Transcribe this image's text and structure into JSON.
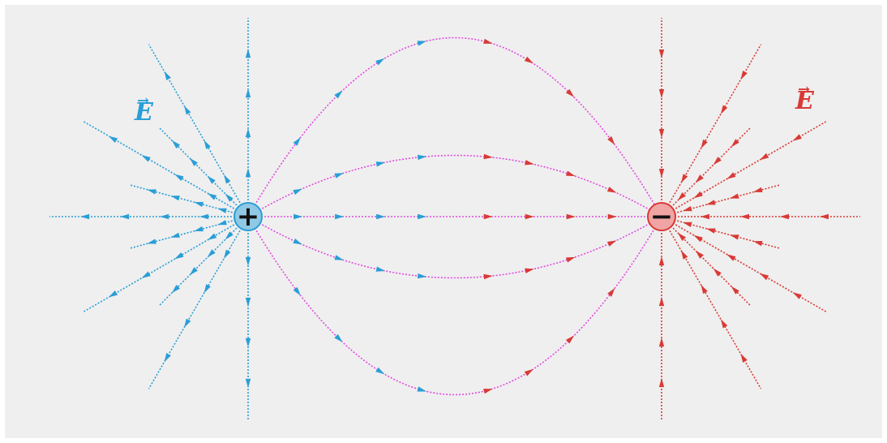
{
  "labels": {
    "positive_field": "E",
    "negative_field": "E",
    "positive_charge": "+",
    "negative_charge": "−"
  },
  "colors": {
    "background": "#efefef",
    "positive_field_lines": "#2a9ed6",
    "negative_field_lines": "#d93a36",
    "connecting_lines": "#e24ae0",
    "positive_charge_fill": "#8fc9e6",
    "negative_charge_fill": "#f1a4a4"
  },
  "icons": {
    "vector_arrow": "→"
  }
}
